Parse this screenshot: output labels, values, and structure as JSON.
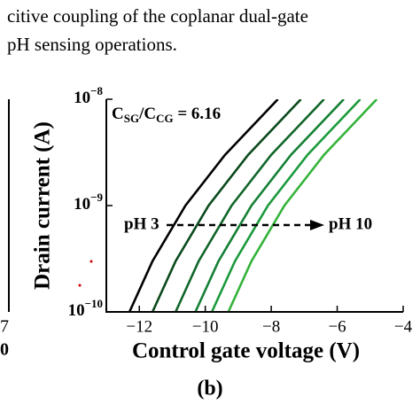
{
  "caption_lines": [
    "citive coupling of the coplanar dual-gate",
    "pH sensing operations."
  ],
  "left_panel": {
    "tick_labels": [
      "7",
      "0"
    ]
  },
  "panel_label": "(b)",
  "chart_data": {
    "type": "line",
    "xlabel": "Control gate voltage (V)",
    "ylabel": "Drain current (A)",
    "xlim": [
      -13,
      -4
    ],
    "xticks": [
      {
        "value": -12,
        "label": "−12"
      },
      {
        "value": -10,
        "label": "−10"
      },
      {
        "value": -8,
        "label": "−8"
      },
      {
        "value": -6,
        "label": "−6"
      },
      {
        "value": -4,
        "label": "−4"
      }
    ],
    "ylim": [
      1e-10,
      1e-08
    ],
    "log_y": true,
    "yticks": [
      {
        "value": 1e-10,
        "label": "10",
        "exponent": "−10"
      },
      {
        "value": 1e-09,
        "label": "10",
        "exponent": "−9"
      },
      {
        "value": 1e-08,
        "label": "10",
        "exponent": "−8"
      }
    ],
    "ratio_label": [
      "C",
      "SG",
      "/C",
      "CG",
      " = 6.16"
    ],
    "annotations": [
      "pH 3",
      "pH 10"
    ],
    "series": [
      {
        "color": "#000000",
        "x": [
          -12.3,
          -11.6,
          -10.6,
          -9.4,
          -7.8
        ],
        "values": [
          1e-10,
          3e-10,
          1e-09,
          3e-09,
          1e-08
        ]
      },
      {
        "color": "#0b4a1c",
        "x": [
          -11.6,
          -10.9,
          -9.9,
          -8.7,
          -7.1
        ],
        "values": [
          1e-10,
          3e-10,
          1e-09,
          3e-09,
          1e-08
        ]
      },
      {
        "color": "#11662a",
        "x": [
          -10.9,
          -10.2,
          -9.2,
          -8.0,
          -6.4
        ],
        "values": [
          1e-10,
          3e-10,
          1e-09,
          3e-09,
          1e-08
        ]
      },
      {
        "color": "#158035",
        "x": [
          -10.3,
          -9.6,
          -8.6,
          -7.4,
          -5.8
        ],
        "values": [
          1e-10,
          3e-10,
          1e-09,
          3e-09,
          1e-08
        ]
      },
      {
        "color": "#1c9a3c",
        "x": [
          -9.8,
          -9.1,
          -8.1,
          -6.9,
          -5.3
        ],
        "values": [
          1e-10,
          3e-10,
          1e-09,
          3e-09,
          1e-08
        ]
      },
      {
        "color": "#34b33a",
        "x": [
          -9.3,
          -8.6,
          -7.6,
          -6.4,
          -4.8
        ],
        "values": [
          1e-10,
          3e-10,
          1e-09,
          3e-09,
          1e-08
        ]
      }
    ]
  }
}
